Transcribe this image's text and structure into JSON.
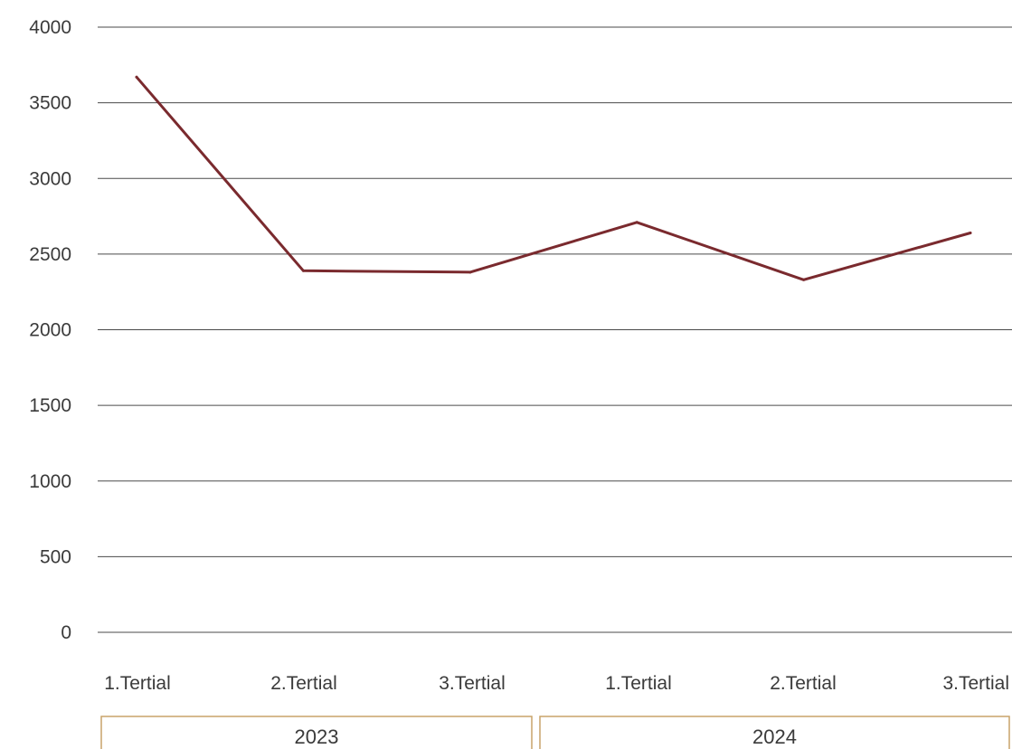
{
  "colors": {
    "line": "#7a2a2e",
    "grid": "#4a4a4a",
    "bracket": "#c9a46a",
    "text": "#3a3a3a"
  },
  "chart_data": {
    "type": "line",
    "title": "",
    "xlabel": "",
    "ylabel": "",
    "ylim": [
      0,
      4000
    ],
    "yticks": [
      0,
      500,
      1000,
      1500,
      2000,
      2500,
      3000,
      3500,
      4000
    ],
    "grid": true,
    "legend": "none",
    "categories": [
      "1.Tertial",
      "2.Tertial",
      "3.Tertial",
      "1.Tertial",
      "2.Tertial",
      "3.Tertial"
    ],
    "groups": [
      {
        "label": "2023",
        "span": [
          0,
          2
        ]
      },
      {
        "label": "2024",
        "span": [
          3,
          5
        ]
      }
    ],
    "series": [
      {
        "values": [
          3670,
          2390,
          2380,
          2710,
          2330,
          2640
        ]
      }
    ]
  }
}
